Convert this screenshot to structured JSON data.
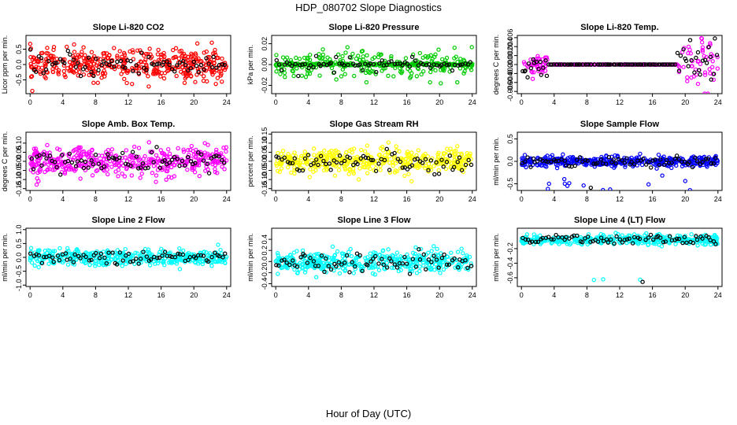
{
  "page": {
    "title": "HDP_080702  Slope Diagnostics",
    "xlabel": "Hour of Day (UTC)"
  },
  "chart_data": [
    {
      "type": "scatter",
      "title": "Slope Li-820 CO2",
      "ylabel": "Licor ppm per min.",
      "xlim": [
        -0.5,
        24.5
      ],
      "xticks": [
        0,
        4,
        8,
        12,
        16,
        20,
        24
      ],
      "ylim": [
        -0.95,
        0.95
      ],
      "yticks": [
        -0.5,
        0.0,
        0.5
      ],
      "ytick_labels": [
        "-0.5",
        "0.0",
        "0.5"
      ],
      "color": "#ff0000",
      "grid": false,
      "pattern": "noise",
      "spread": 0.45
    },
    {
      "type": "scatter",
      "title": "Slope Li-820 Pressure",
      "ylabel": "kPa per min.",
      "xlim": [
        -0.5,
        24.5
      ],
      "xticks": [
        0,
        4,
        8,
        12,
        16,
        20,
        24
      ],
      "ylim": [
        -0.028,
        0.028
      ],
      "yticks": [
        -0.02,
        0.0,
        0.02
      ],
      "ytick_labels": [
        "-0.02",
        "0.00",
        "0.02"
      ],
      "color": "#00cc00",
      "grid": false,
      "pattern": "pressure",
      "spread": 0.01
    },
    {
      "type": "scatter",
      "title": "Slope Li-820 Temp.",
      "ylabel": "degrees C per min.",
      "xlim": [
        -0.5,
        24.5
      ],
      "xticks": [
        0,
        4,
        8,
        12,
        16,
        20,
        24
      ],
      "ylim": [
        -0.0065,
        0.0065
      ],
      "yticks": [
        -0.006,
        -0.004,
        -0.002,
        0.0,
        0.002,
        0.004,
        0.006
      ],
      "ytick_labels": [
        "-0.006",
        "-0.004",
        "-0.002",
        "0.000",
        "0.002",
        "0.004",
        "0.006"
      ],
      "color": "#ff00ff",
      "grid": false,
      "pattern": "temp",
      "spread": 0.0015
    },
    {
      "type": "scatter",
      "title": "Slope Amb. Box Temp.",
      "ylabel": "degrees C per min.",
      "xlim": [
        -0.5,
        24.5
      ],
      "xticks": [
        0,
        4,
        8,
        12,
        16,
        20,
        24
      ],
      "ylim": [
        -0.16,
        0.16
      ],
      "yticks": [
        -0.15,
        -0.1,
        -0.05,
        0.0,
        0.05,
        0.1
      ],
      "ytick_labels": [
        "-0.15",
        "-0.10",
        "-0.05",
        "0.00",
        "0.05",
        "0.10"
      ],
      "color": "#ff00ff",
      "grid": false,
      "pattern": "noise",
      "spread": 0.07
    },
    {
      "type": "scatter",
      "title": "Slope Gas Stream RH",
      "ylabel": "percent per min.",
      "xlim": [
        -0.5,
        24.5
      ],
      "xticks": [
        0,
        4,
        8,
        12,
        16,
        20,
        24
      ],
      "ylim": [
        -0.16,
        0.16
      ],
      "yticks": [
        -0.15,
        -0.1,
        -0.05,
        0.0,
        0.05,
        0.1,
        0.15
      ],
      "ytick_labels": [
        "-0.15",
        "-0.10",
        "-0.05",
        "0.00",
        "0.05",
        "0.10",
        "0.15"
      ],
      "color": "#ffff00",
      "grid": false,
      "pattern": "noise",
      "spread": 0.06
    },
    {
      "type": "scatter",
      "title": "Slope Sample Flow",
      "ylabel": "ml/min per min.",
      "xlim": [
        -0.5,
        24.5
      ],
      "xticks": [
        0,
        4,
        8,
        12,
        16,
        20,
        24
      ],
      "ylim": [
        -0.65,
        0.65
      ],
      "yticks": [
        -0.5,
        0.0,
        0.5
      ],
      "ytick_labels": [
        "-0.5",
        "0.0",
        "0.5"
      ],
      "color": "#0000ff",
      "grid": false,
      "pattern": "flow",
      "spread": 0.12
    },
    {
      "type": "scatter",
      "title": "Slope Line 2 Flow",
      "ylabel": "ml/min per min.",
      "xlim": [
        -0.5,
        24.5
      ],
      "xticks": [
        0,
        4,
        8,
        12,
        16,
        20,
        24
      ],
      "ylim": [
        -1.05,
        1.05
      ],
      "yticks": [
        -1.0,
        -0.5,
        0.0,
        0.5,
        1.0
      ],
      "ytick_labels": [
        "-1.0",
        "-0.5",
        "0.0",
        "0.5",
        "1.0"
      ],
      "color": "#00ffff",
      "grid": false,
      "pattern": "noise",
      "spread": 0.25
    },
    {
      "type": "scatter",
      "title": "Slope Line 3 Flow",
      "ylabel": "ml/min per min.",
      "xlim": [
        -0.5,
        24.5
      ],
      "xticks": [
        0,
        4,
        8,
        12,
        16,
        20,
        24
      ],
      "ylim": [
        -0.45,
        0.6
      ],
      "yticks": [
        -0.4,
        -0.2,
        0.0,
        0.2,
        0.4
      ],
      "ytick_labels": [
        "-0.4",
        "-0.2",
        "0.0",
        "0.2",
        "0.4"
      ],
      "color": "#00ffff",
      "grid": false,
      "pattern": "noise",
      "spread": 0.18
    },
    {
      "type": "scatter",
      "title": "Slope Line 4 (LT) Flow",
      "ylabel": "ml/min per min.",
      "xlim": [
        -0.5,
        24.5
      ],
      "xticks": [
        0,
        4,
        8,
        12,
        16,
        20,
        24
      ],
      "ylim": [
        -0.72,
        0.08
      ],
      "yticks": [
        -0.6,
        -0.4,
        -0.2
      ],
      "ytick_labels": [
        "-0.6",
        "-0.4",
        "-0.2"
      ],
      "color": "#00ffff",
      "grid": false,
      "pattern": "lt",
      "spread": 0.03
    }
  ]
}
